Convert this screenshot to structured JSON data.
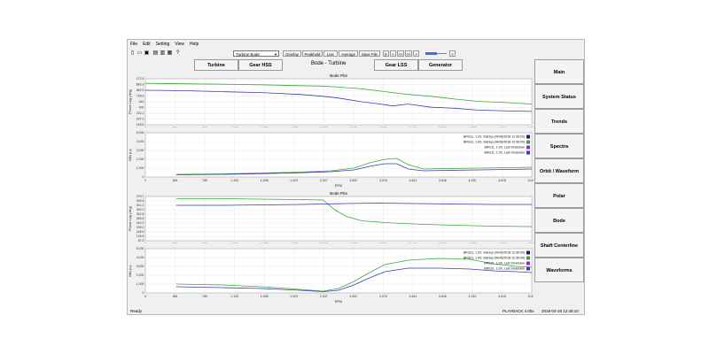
{
  "menu": [
    "File",
    "Edit",
    "Setting",
    "View",
    "Help"
  ],
  "toolbar": {
    "icons": [
      "new-file-icon",
      "open-folder-icon",
      "save-icon",
      "copy-icon",
      "print-icon",
      "export-icon",
      "info-icon"
    ],
    "plot_select": "Turbine Bode",
    "buttons": [
      "Overlay",
      "Peakhold",
      "Live",
      "Average",
      "Save File"
    ],
    "nav_buttons": [
      "|<",
      "<",
      "<<",
      ">>",
      ">",
      "<"
    ],
    "slider_value": 0.55
  },
  "tabs": [
    "Turbine",
    "Gear HSS",
    "Gear LSS",
    "Generator"
  ],
  "page_title": "Bode - Turbine",
  "right_nav": [
    "Main",
    "System Status",
    "Trends",
    "Spectra",
    "Orbit / Waveform",
    "Polar",
    "Bode",
    "Shaft Centerline",
    "Waveforms"
  ],
  "status": {
    "left": "Ready",
    "rate": "PLAYBACK 4.00x",
    "time": "2018-04-26 12:49:10"
  },
  "colors": {
    "green": "#3aa63a",
    "blue": "#3b3bb8",
    "purple": "#8a2be2",
    "navy": "#1d1d6e"
  },
  "chart_data": [
    {
      "type": "line",
      "title": "Bode Plot",
      "ylabel": "Phase Lag (deg)",
      "xlabel": "",
      "x_ticks": [
        "0",
        "384",
        "769",
        "1,153",
        "1,538",
        "1,923",
        "2,307",
        "2,692",
        "3,076",
        "3,461",
        "3,845",
        "4,230",
        "4,615",
        "5,000"
      ],
      "y_ticks": [
        "193.6",
        "207.9",
        "222.2",
        "400",
        "615",
        "728.9",
        "862.9",
        "882.9",
        "172.9"
      ],
      "xlim": [
        0,
        5000
      ],
      "ylim": [
        0,
        100
      ],
      "series": [
        {
          "name": "",
          "color": "green",
          "x": [
            0,
            500,
            1000,
            1500,
            2000,
            2300,
            2500,
            2800,
            3000,
            3200,
            3400,
            3700,
            4000,
            4300,
            4700,
            5000
          ],
          "y": [
            90,
            89,
            88,
            87,
            85,
            84,
            82,
            78,
            74,
            70,
            66,
            62,
            56,
            51,
            48,
            45
          ]
        },
        {
          "name": "",
          "color": "blue",
          "x": [
            0,
            500,
            1000,
            1500,
            2000,
            2300,
            2500,
            2800,
            3000,
            3200,
            3400,
            3700,
            4000,
            4300,
            4700,
            5000
          ],
          "y": [
            75,
            74,
            72,
            70,
            66,
            62,
            58,
            50,
            46,
            41,
            45,
            38,
            36,
            32,
            30,
            29
          ]
        }
      ]
    },
    {
      "type": "line",
      "title": "",
      "ylabel": "Mils p-p",
      "xlabel": "RPM",
      "x_ticks": [
        "0",
        "384",
        "769",
        "1,153",
        "1,538",
        "1,923",
        "2,307",
        "2,692",
        "3,076",
        "3,461",
        "3,845",
        "4,230",
        "4,615",
        "5,000"
      ],
      "y_ticks": [
        "0",
        "1,000",
        "2,000",
        "3,000",
        "4,000",
        "5,000"
      ],
      "xlim": [
        0,
        5000
      ],
      "ylim": [
        0,
        5000
      ],
      "legend": [
        "BRG11, 1.0X, Startup (04/26/2018 12:36:09)",
        "BRG11, 1.0X, Startup (04/26/2018 12:36:09)",
        "BRG11, 1.0X, Last Shutdown",
        "BRG11, 1.0X, Last Shutdown"
      ],
      "series": [
        {
          "name": "BRG11, 1.0X, Startup (04/26/2018 12:36:09)",
          "color": "navy",
          "x": [
            0,
            5000
          ],
          "y": [
            0,
            0
          ]
        },
        {
          "name": "BRG11, 1.0X, Startup (04/26/2018 12:36:09)",
          "color": "green",
          "x": [
            400,
            1000,
            1500,
            2000,
            2400,
            2700,
            2900,
            3100,
            3250,
            3400,
            3600,
            3900,
            4300,
            4700,
            5000
          ],
          "y": [
            300,
            350,
            450,
            550,
            700,
            1000,
            1600,
            2000,
            2100,
            1400,
            900,
            950,
            1000,
            1050,
            1100
          ]
        },
        {
          "name": "BRG11, 1.0X, Last Shutdown",
          "color": "purple",
          "x": [
            0,
            5000
          ],
          "y": [
            0,
            0
          ]
        },
        {
          "name": "BRG11, 1.0X, Last Shutdown",
          "color": "blue",
          "x": [
            400,
            1000,
            1500,
            2000,
            2400,
            2700,
            2900,
            3100,
            3250,
            3400,
            3600,
            3900,
            4300,
            4700,
            5000
          ],
          "y": [
            250,
            300,
            380,
            480,
            600,
            800,
            1200,
            1500,
            1500,
            900,
            700,
            750,
            800,
            850,
            900
          ]
        }
      ]
    },
    {
      "type": "line",
      "title": "Bode Plot",
      "ylabel": "Phase Lag (deg)",
      "xlabel": "",
      "x_ticks": [
        "0",
        "384",
        "769",
        "1,153",
        "1,538",
        "1,923",
        "2,307",
        "2,692",
        "3,076",
        "3,461",
        "3,845",
        "4,230",
        "4,615",
        "5,000"
      ],
      "y_ticks": [
        "87.3",
        "126.5",
        "165.8",
        "205.0",
        "244.3",
        "283.5",
        "322.8",
        "362.0",
        "401.2",
        "440.5",
        "479.7"
      ],
      "xlim": [
        0,
        5000
      ],
      "ylim": [
        0,
        100
      ],
      "series": [
        {
          "name": "",
          "color": "green",
          "x": [
            400,
            1000,
            1500,
            2000,
            2300,
            2450,
            2600,
            2800,
            3200,
            3600,
            4000,
            4500,
            5000
          ],
          "y": [
            95,
            95,
            94,
            93,
            92,
            70,
            55,
            45,
            40,
            37,
            35,
            33,
            32
          ]
        },
        {
          "name": "",
          "color": "blue",
          "x": [
            400,
            1000,
            1500,
            2000,
            2300,
            2600,
            3000,
            3500,
            4000,
            4500,
            5000
          ],
          "y": [
            80,
            80,
            81,
            82,
            83,
            84,
            85,
            84,
            83,
            82,
            82
          ]
        }
      ]
    },
    {
      "type": "line",
      "title": "",
      "ylabel": "Mils p-p",
      "xlabel": "RPM",
      "x_ticks": [
        "0",
        "384",
        "769",
        "1,153",
        "1,538",
        "1,923",
        "2,307",
        "2,692",
        "3,076",
        "3,461",
        "3,845",
        "4,230",
        "4,615",
        "5,000"
      ],
      "y_ticks": [
        "0",
        "1,000",
        "2,000",
        "3,000",
        "4,000",
        "5,000"
      ],
      "xlim": [
        0,
        5000
      ],
      "ylim": [
        0,
        5000
      ],
      "legend": [
        "BRG21, 1.0X, Startup (04/26/2018 12:36:09)",
        "BRG21, 1.0X, Startup (04/26/2018 12:36:09)",
        "BRG21, 1.0X, Last Shutdown",
        "BRG21, 1.0X, Last Shutdown"
      ],
      "series": [
        {
          "name": "BRG21, 1.0X, Startup (04/26/2018 12:36:09)",
          "color": "navy",
          "x": [
            0,
            5000
          ],
          "y": [
            0,
            0
          ]
        },
        {
          "name": "BRG21, 1.0X, Startup (04/26/2018 12:36:09)",
          "color": "green",
          "x": [
            400,
            1000,
            1500,
            2000,
            2300,
            2500,
            2700,
            2900,
            3100,
            3400,
            3800,
            4200,
            4500,
            4800,
            5000
          ],
          "y": [
            1000,
            900,
            700,
            400,
            200,
            500,
            1300,
            2300,
            3200,
            3700,
            3900,
            3800,
            3300,
            3000,
            2900
          ]
        },
        {
          "name": "BRG21, 1.0X, Last Shutdown",
          "color": "purple",
          "x": [
            0,
            5000
          ],
          "y": [
            0,
            0
          ]
        },
        {
          "name": "BRG21, 1.0X, Last Shutdown",
          "color": "blue",
          "x": [
            400,
            1000,
            1500,
            2000,
            2300,
            2500,
            2700,
            2900,
            3100,
            3400,
            3800,
            4200,
            4500,
            4800,
            5000
          ],
          "y": [
            700,
            600,
            500,
            300,
            150,
            300,
            900,
            1700,
            2400,
            2800,
            2800,
            2700,
            2500,
            2400,
            2300
          ]
        }
      ]
    }
  ]
}
